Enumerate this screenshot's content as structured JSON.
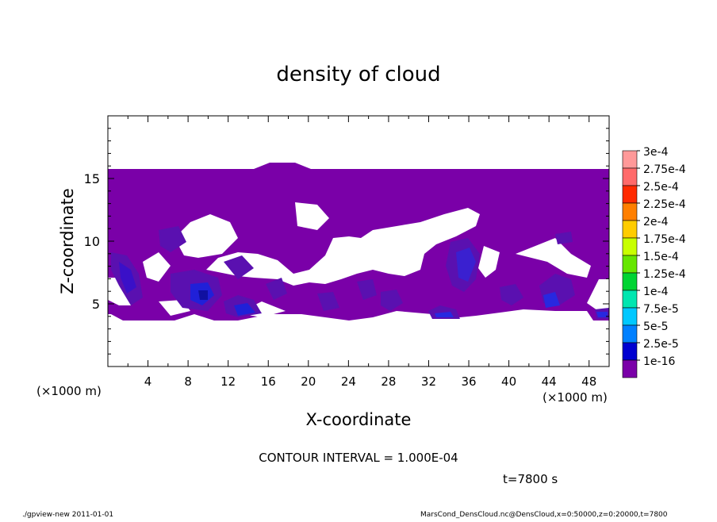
{
  "chart_data": {
    "type": "contour",
    "title": "density of cloud",
    "xlabel": "X-coordinate",
    "ylabel": "Z-coordinate",
    "x_unit": "(×1000 m)",
    "x_unit_left": "(×1000 m)",
    "xlim": [
      0,
      50
    ],
    "ylim": [
      0,
      20
    ],
    "x_ticks": [
      4,
      8,
      12,
      16,
      20,
      24,
      28,
      32,
      36,
      40,
      44,
      48
    ],
    "y_ticks": [
      5,
      10,
      15
    ],
    "contour_interval_text": "CONTOUR INTERVAL = 1.000E-04",
    "time_text": "t=7800 s",
    "colorbar": {
      "levels": [
        "3e-4",
        "2.75e-4",
        "2.5e-4",
        "2.25e-4",
        "2e-4",
        "1.75e-4",
        "1.5e-4",
        "1.25e-4",
        "1e-4",
        "7.5e-5",
        "5e-5",
        "2.5e-5",
        "1e-16"
      ],
      "colors": [
        "#ff9999",
        "#ff6a6a",
        "#ff2a00",
        "#ff7f00",
        "#ffcc00",
        "#c8ff00",
        "#66e600",
        "#00d433",
        "#00e6b0",
        "#00c8ff",
        "#0080ff",
        "#0000d0",
        "#7a00a8"
      ]
    },
    "field_description": {
      "base_color": "#7a00a8",
      "cloud_top_z": 15.6,
      "cloud_bottom_z": 3.8
    }
  },
  "footer": {
    "left": "./gpview-new   2011-01-01",
    "right": "MarsCond_DensCloud.nc@DensCloud,x=0:50000,z=0:20000,t=7800"
  }
}
